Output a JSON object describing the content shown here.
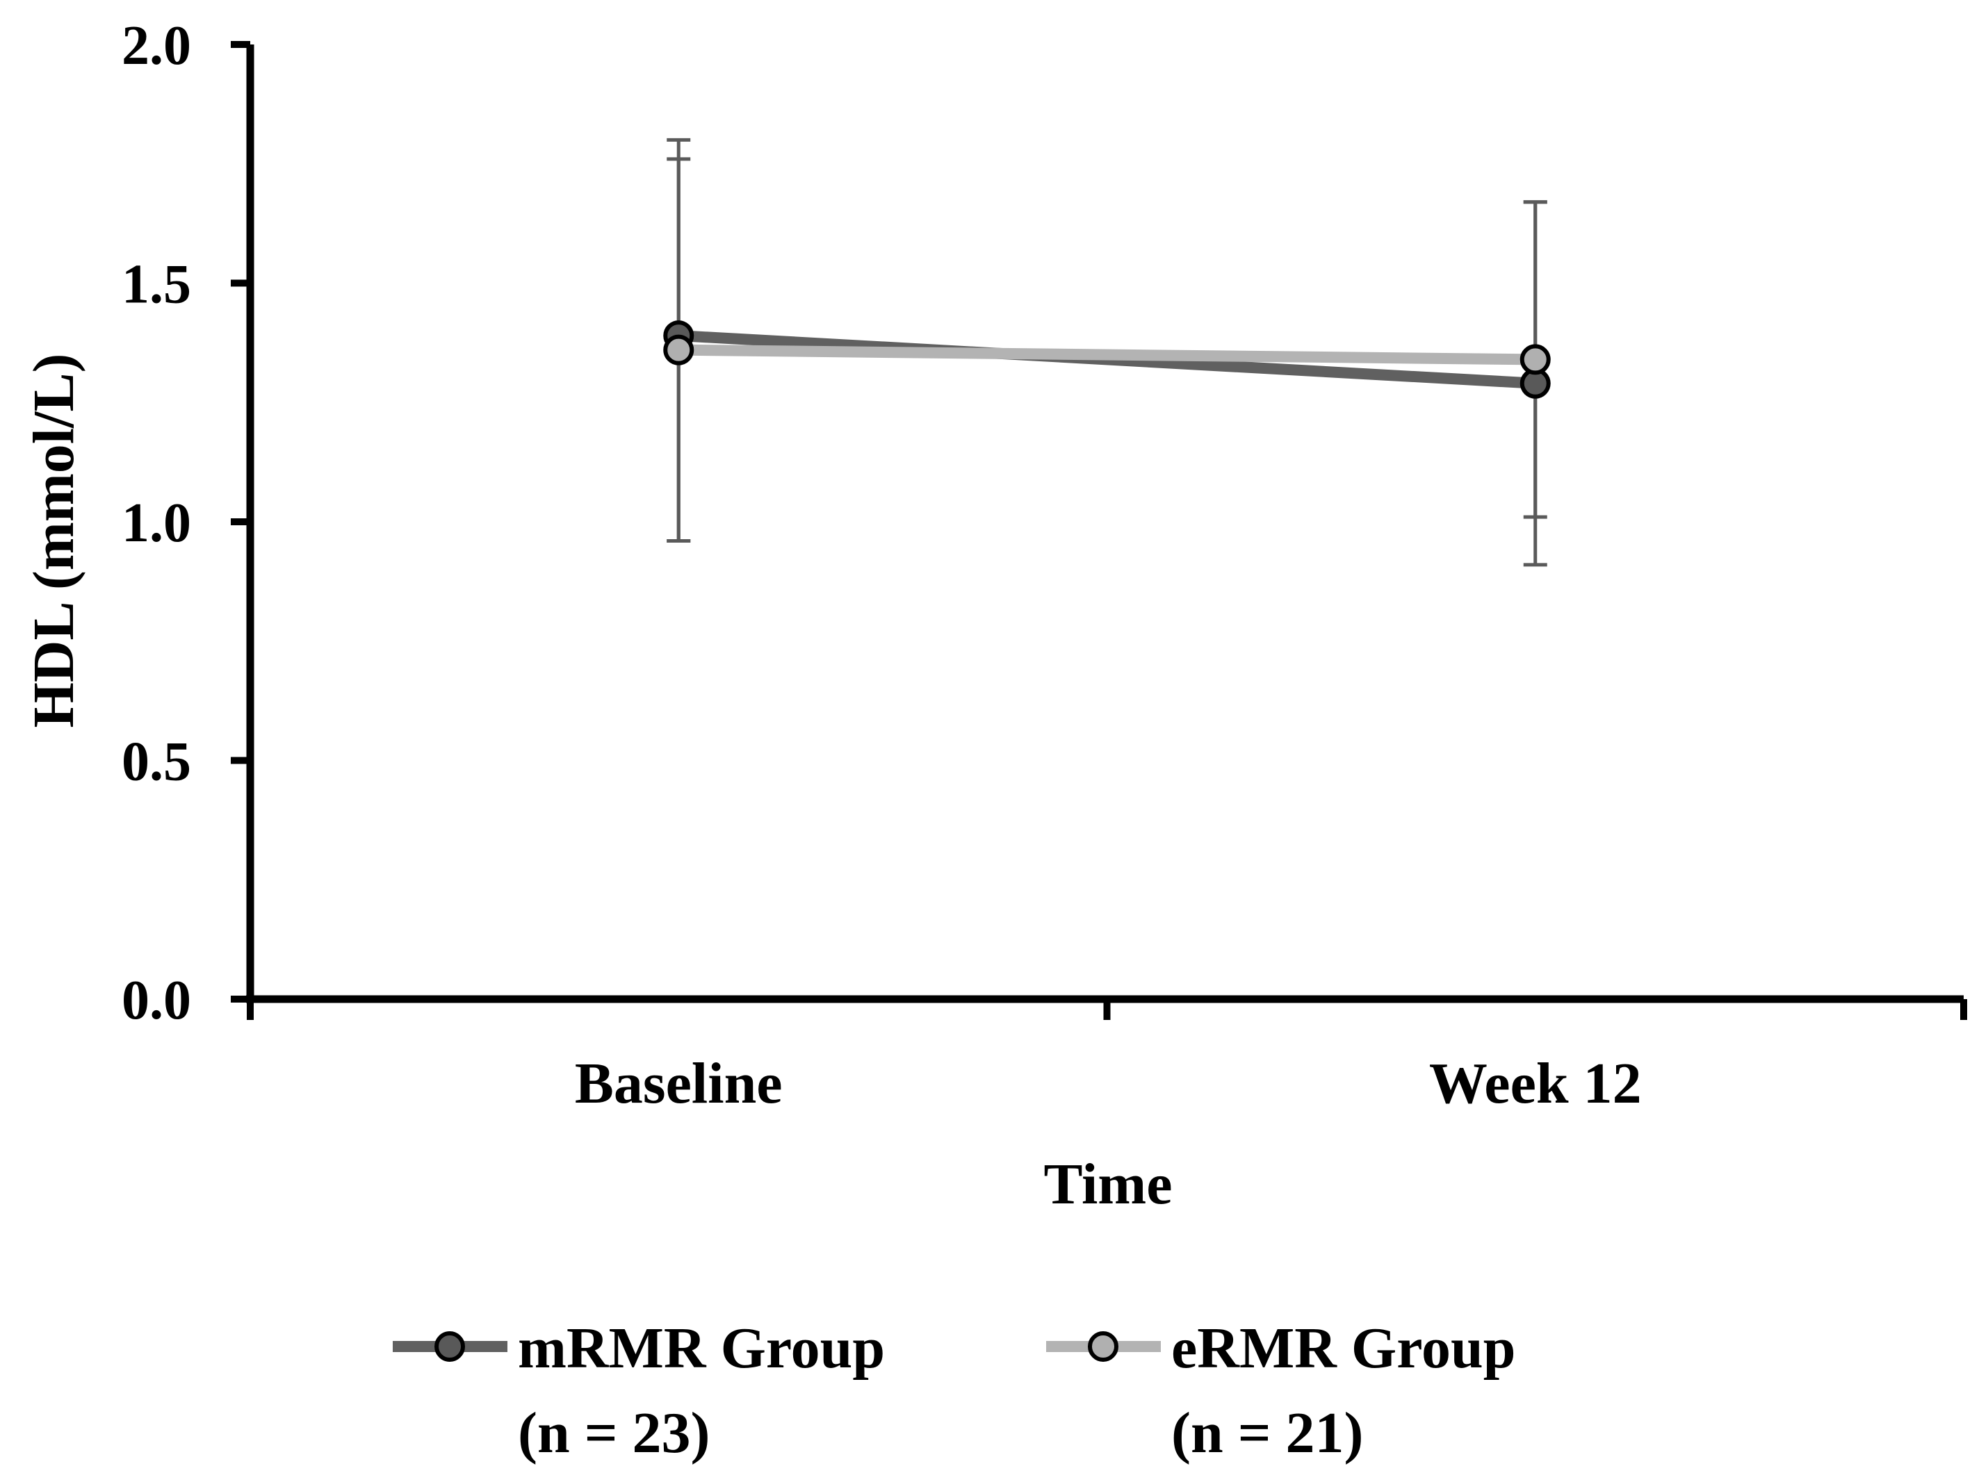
{
  "chart_data": {
    "type": "line",
    "title": "",
    "xlabel": "Time",
    "ylabel": "HDL (mmol/L)",
    "categories": [
      "Baseline",
      "Week 12"
    ],
    "ylim": [
      0,
      2
    ],
    "yticks": [
      "0.0",
      "0.5",
      "1.0",
      "1.5",
      "2.0"
    ],
    "series": [
      {
        "name": "mRMR Group",
        "name_line2": "(n = 23)",
        "values": [
          1.39,
          1.29
        ],
        "error_upper": [
          1.8,
          1.67
        ],
        "error_lower": [
          0.96,
          0.91
        ],
        "line_color": "#606060",
        "marker_color": "#595959"
      },
      {
        "name": "eRMR Group",
        "name_line2": "(n = 21)",
        "values": [
          1.36,
          1.34
        ],
        "error_upper": [
          1.76,
          1.67
        ],
        "error_lower": [
          0.96,
          1.01
        ],
        "line_color": "#b3b3b3",
        "marker_color": "#b0b0b0"
      }
    ],
    "grid": false,
    "legend_position": "bottom"
  }
}
